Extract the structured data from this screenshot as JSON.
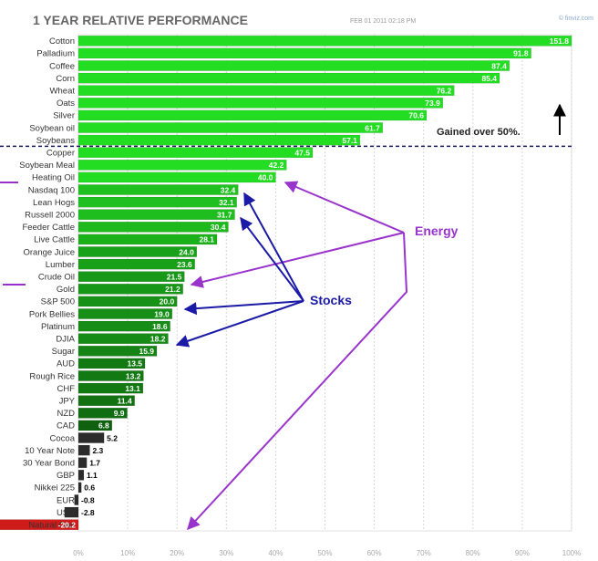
{
  "header": {
    "title": "1 YEAR RELATIVE PERFORMANCE",
    "date": "FEB 01 2011 02:18 PM",
    "source": "© finviz.com"
  },
  "colors": {
    "bright_green": "#22dd22",
    "dark_green": "#0f5e0f",
    "dark_gray": "#2b2b2b",
    "red": "#d01b1b",
    "energy_purple": "#9933cc",
    "stocks_blue": "#1a1aa6",
    "divider": "#1a1a5e"
  },
  "annotations": {
    "gain_note": "Gained over 50%.",
    "energy": "Energy",
    "stocks": "Stocks"
  },
  "chart_data": {
    "type": "bar",
    "orientation": "horizontal",
    "title": "1 YEAR RELATIVE PERFORMANCE",
    "categories": [
      "Cotton",
      "Palladium",
      "Coffee",
      "Corn",
      "Wheat",
      "Oats",
      "Silver",
      "Soybean oil",
      "Soybeans",
      "Copper",
      "Soybean Meal",
      "Heating Oil",
      "Nasdaq 100",
      "Lean Hogs",
      "Russell 2000",
      "Feeder Cattle",
      "Live Cattle",
      "Orange Juice",
      "Lumber",
      "Crude Oil",
      "Gold",
      "S&P 500",
      "Pork Bellies",
      "Platinum",
      "DJIA",
      "Sugar",
      "AUD",
      "Rough Rice",
      "CHF",
      "JPY",
      "NZD",
      "CAD",
      "Cocoa",
      "10 Year Note",
      "30 Year Bond",
      "GBP",
      "Nikkei 225",
      "EUR",
      "USD",
      "Natural Gas"
    ],
    "values": [
      151.8,
      91.8,
      87.4,
      85.4,
      76.2,
      73.9,
      70.6,
      61.7,
      57.1,
      47.5,
      42.2,
      40.0,
      32.4,
      32.1,
      31.7,
      30.4,
      28.1,
      24.0,
      23.6,
      21.5,
      21.2,
      20.0,
      19.0,
      18.6,
      18.2,
      15.9,
      13.5,
      13.2,
      13.1,
      11.4,
      9.9,
      6.8,
      5.2,
      2.3,
      1.7,
      1.1,
      0.6,
      -0.8,
      -2.8,
      -20.2
    ],
    "value_labels": [
      "151.8",
      "91.8",
      "87.4",
      "85.4",
      "76.2",
      "73.9",
      "70.6",
      "61.7",
      "57.1",
      "47.5",
      "42.2",
      "40.0",
      "32.4",
      "32.1",
      "31.7",
      "30.4",
      "28.1",
      "24.0",
      "23.6",
      "21.5",
      "21.2",
      "20.0",
      "19.0",
      "18.6",
      "18.2",
      "15.9",
      "13.5",
      "13.2",
      "13.1",
      "11.4",
      "9.9",
      "6.8",
      "5.2",
      "2.3",
      "1.7",
      "1.1",
      "0.6",
      "-0.8",
      "-2.8",
      "-20.2"
    ],
    "xlim": [
      0,
      100
    ],
    "xticks": [
      "0%",
      "10%",
      "20%",
      "30%",
      "40%",
      "50%",
      "60%",
      "70%",
      "80%",
      "90%",
      "100%"
    ],
    "grid": true,
    "threshold": 50
  }
}
